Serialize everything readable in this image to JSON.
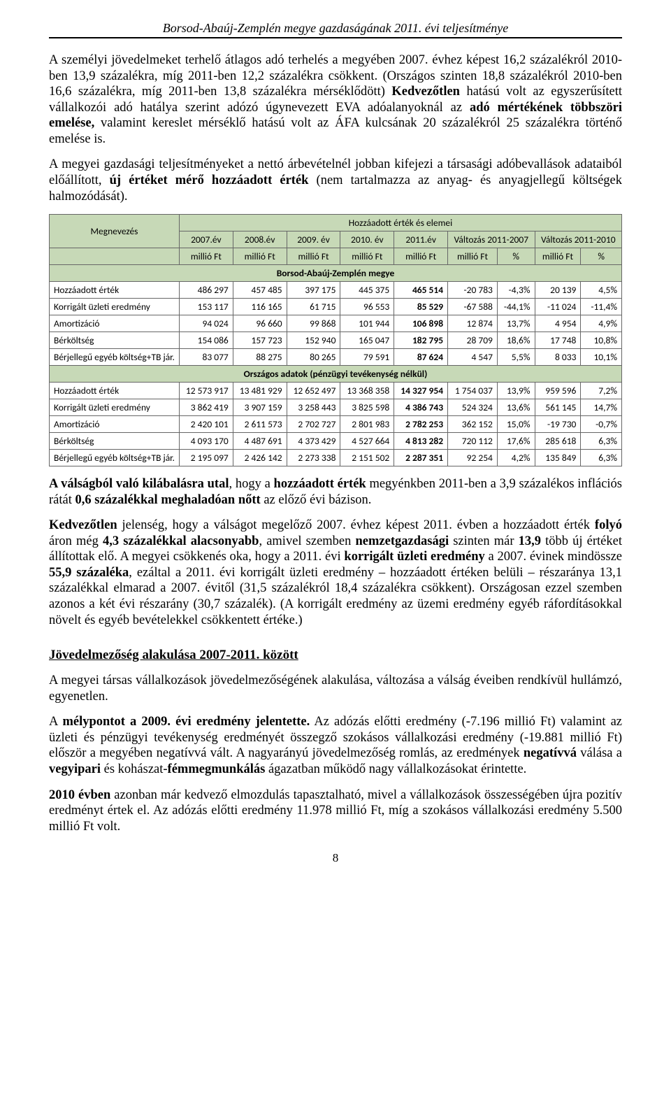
{
  "header": "Borsod-Abaúj-Zemplén megye gazdaságának 2011. évi teljesítménye",
  "para1_a": "A személyi jövedelmeket terhelő átlagos adó terhelés a megyében 2007. évhez képest 16,2 százalékról 2010-ben 13,9 százalékra, míg 2011-ben 12,2 százalékra csökkent.",
  "para1_b": "(Országos szinten 18,8 százalékról 2010-ben 16,6 százalékra, míg 2011-ben 13,8 százalékra mérséklődött)",
  "para1_c_pre": "Kedvezőtlen",
  "para1_c_mid": " hatású volt az egyszerűsített vállalkozói adó hatálya szerint adózó úgynevezett EVA adóalanyoknál az ",
  "para1_c_bold": "adó mértékének többszöri emelése,",
  "para1_c_post": " valamint kereslet mérséklő hatású volt az ÁFA kulcsának 20 százalékról 25 százalékra történő emelése is.",
  "para2_a": "A megyei gazdasági teljesítményeket a nettó árbevételnél jobban kifejezi a társasági adóbevallások adataiból előállított, ",
  "para2_b": "új értéket mérő hozzáadott érték",
  "para2_c": " (nem tartalmazza az anyag- és anyagjellegű költségek halmozódását).",
  "table": {
    "col_main": "Megnevezés",
    "col_group": "Hozzáadott érték és elemei",
    "cols_year": [
      "2007.év",
      "2008.év",
      "2009. év",
      "2010. év",
      "2011.év"
    ],
    "cols_change": [
      "Változás 2011-2007",
      "Változás 2011-2010"
    ],
    "unit_a": "millió Ft",
    "unit_b": "%",
    "section1": "Borsod-Abaúj-Zemplén megye",
    "section2": "Országos adatok (pénzügyi tevékenység nélkül)",
    "regional": [
      {
        "label": "Hozzáadott érték",
        "v": [
          "486 297",
          "457 485",
          "397 175",
          "445 375",
          "465 514",
          "-20 783",
          "-4,3%",
          "20 139",
          "4,5%"
        ]
      },
      {
        "label": "Korrigált üzleti eredmény",
        "v": [
          "153 117",
          "116 165",
          "61 715",
          "96 553",
          "85 529",
          "-67 588",
          "-44,1%",
          "-11 024",
          "-11,4%"
        ]
      },
      {
        "label": "Amortizáció",
        "v": [
          "94 024",
          "96 660",
          "99 868",
          "101 944",
          "106 898",
          "12 874",
          "13,7%",
          "4 954",
          "4,9%"
        ]
      },
      {
        "label": "Bérköltség",
        "v": [
          "154 086",
          "157 723",
          "152 940",
          "165 047",
          "182 795",
          "28 709",
          "18,6%",
          "17 748",
          "10,8%"
        ]
      },
      {
        "label": "Bérjellegű egyéb költség+TB jár.",
        "v": [
          "83 077",
          "88 275",
          "80 265",
          "79 591",
          "87 624",
          "4 547",
          "5,5%",
          "8 033",
          "10,1%"
        ]
      }
    ],
    "national": [
      {
        "label": "Hozzáadott érték",
        "v": [
          "12 573 917",
          "13 481 929",
          "12 652 497",
          "13 368 358",
          "14 327 954",
          "1 754 037",
          "13,9%",
          "959 596",
          "7,2%"
        ]
      },
      {
        "label": "Korrigált üzleti eredmény",
        "v": [
          "3 862 419",
          "3 907 159",
          "3 258 443",
          "3 825 598",
          "4 386 743",
          "524 324",
          "13,6%",
          "561 145",
          "14,7%"
        ]
      },
      {
        "label": "Amortizáció",
        "v": [
          "2 420 101",
          "2 611 573",
          "2 702 727",
          "2 801 983",
          "2 782 253",
          "362 152",
          "15,0%",
          "-19 730",
          "-0,7%"
        ]
      },
      {
        "label": "Bérköltség",
        "v": [
          "4 093 170",
          "4 487 691",
          "4 373 429",
          "4 527 664",
          "4 813 282",
          "720 112",
          "17,6%",
          "285 618",
          "6,3%"
        ]
      },
      {
        "label": "Bérjellegű egyéb költség+TB jár.",
        "v": [
          "2 195 097",
          "2 426 142",
          "2 273 338",
          "2 151 502",
          "2 287 351",
          "92 254",
          "4,2%",
          "135 849",
          "6,3%"
        ]
      }
    ]
  },
  "para3_pre": "A válságból való kilábalásra utal",
  "para3_mid1": ", hogy a ",
  "para3_b1": "hozzáadott érték",
  "para3_mid2": " megyénkben 2011-ben a 3,9 százalékos inflációs rátát ",
  "para3_b2": "0,6 százalékkal meghaladóan nőtt",
  "para3_post": " az előző évi bázison.",
  "para4_b1": "Kedvezőtlen ",
  "para4_t1": "jelenség, hogy a válságot megelőző 2007. évhez képest 2011. évben a hozzáadott érték ",
  "para4_b2": "folyó",
  "para4_t2": " áron még ",
  "para4_b3": "4,3 százalékkal alacsonyabb",
  "para4_t3": ", amivel szemben ",
  "para4_b4": "nemzetgazdasági",
  "para4_t4": " szinten már ",
  "para4_b5": "13,9",
  "para4_t5": " több új értéket állítottak elő. A megyei csökkenés oka, hogy a 2011. évi ",
  "para4_b6": "korrigált üzleti eredmény",
  "para4_t6": " a 2007. évinek mindössze ",
  "para4_b7": "55,9 százaléka",
  "para4_t7": ", ezáltal a 2011. évi korrigált üzleti eredmény – hozzáadott értéken belüli – részaránya 13,1 százalékkal elmarad a 2007. évitől (31,5 százalékról 18,4 százalékra csökkent). Országosan ezzel szemben azonos a két évi részarány (30,7 százalék). (A korrigált eredmény az üzemi eredmény egyéb ráfordításokkal növelt és egyéb bevételekkel csökkentett értéke.)",
  "section_heading": "Jövedelmezőség alakulása 2007-2011. között",
  "para5": "A megyei társas vállalkozások jövedelmezőségének alakulása, változása a válság éveiben rendkívül hullámzó, egyenetlen.",
  "para6_t1": "A ",
  "para6_b1": "mélypontot a 2009. évi eredmény jelentette.",
  "para6_t2": " Az adózás előtti eredmény (-7.196 millió Ft) valamint az üzleti és pénzügyi tevékenység eredményét összegző szokásos vállalkozási eredmény (-19.881 millió Ft) először a megyében negatívvá vált. A nagyarányú jövedelmezőség romlás, az eredmények ",
  "para6_b2": "negatívvá",
  "para6_t3": " válása a ",
  "para6_b3": "vegyipari",
  "para6_t4": " és kohászat-",
  "para6_b4": "fémmegmunkálás",
  "para6_t5": " ágazatban működő nagy vállalkozásokat érintette.",
  "para7_b1": "2010 évben",
  "para7_t1": " azonban már kedvező elmozdulás tapasztalható, mivel a vállalkozások összességében újra pozitív eredményt értek el. Az adózás előtti eredmény 11.978 millió Ft, míg a szokásos vállalkozási eredmény 5.500 millió Ft volt.",
  "page_number": "8"
}
